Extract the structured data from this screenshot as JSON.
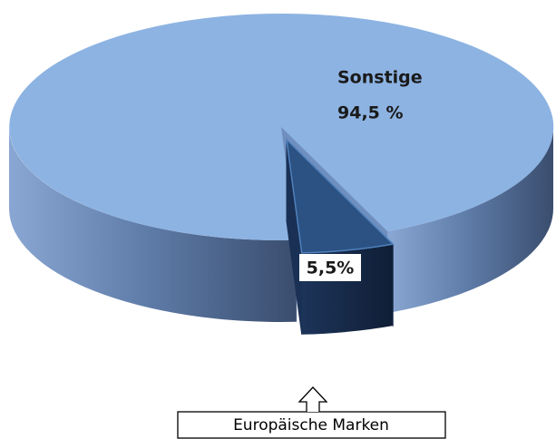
{
  "chart_data": {
    "type": "pie",
    "categories": [
      "Sonstige",
      "Europäische Marken"
    ],
    "values": [
      94.5,
      5.5
    ],
    "value_labels": [
      "94,5 %",
      "5,5%"
    ],
    "colors": [
      "#8db3e2",
      "#2b5283"
    ]
  }
}
